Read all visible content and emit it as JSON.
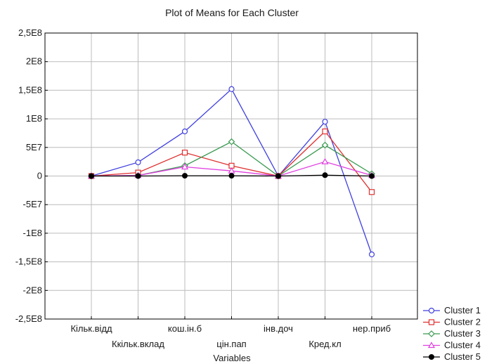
{
  "chart_data": {
    "type": "line",
    "title": "Plot of Means for Each Cluster",
    "xlabel": "Variables",
    "ylabel": "",
    "categories": [
      "Кільк.відд",
      "Ккільк.вклад",
      "кош.ін.б",
      "цін.пап",
      "інв.доч",
      "Кред.кл",
      "нер.приб"
    ],
    "ylim": [
      -250000000,
      250000000
    ],
    "yticks": [
      250000000,
      200000000,
      150000000,
      100000000,
      50000000,
      0,
      -50000000,
      -100000000,
      -150000000,
      -200000000,
      -250000000
    ],
    "ytick_labels": [
      "2,5E8",
      "2E8",
      "1,5E8",
      "1E8",
      "5E7",
      "0",
      "-5E7",
      "-1E8",
      "-1,5E8",
      "-2E8",
      "-2,5E8"
    ],
    "grid": true,
    "legend_position": "bottom-right",
    "series": [
      {
        "name": "Cluster  1",
        "color": "#4040e0",
        "marker": "circle",
        "values": [
          0,
          24000000,
          78000000,
          152000000,
          0,
          95000000,
          -137000000
        ]
      },
      {
        "name": "Cluster  2",
        "color": "#e03030",
        "marker": "square",
        "values": [
          0,
          6000000,
          41000000,
          18000000,
          0,
          78000000,
          -28000000
        ]
      },
      {
        "name": "Cluster  3",
        "color": "#3a9a50",
        "marker": "diamond",
        "values": [
          0,
          1000000,
          18000000,
          60000000,
          0,
          54000000,
          4000000
        ]
      },
      {
        "name": "Cluster  4",
        "color": "#e040e0",
        "marker": "triangle",
        "values": [
          0,
          1000000,
          16000000,
          9000000,
          0,
          25000000,
          1000000
        ]
      },
      {
        "name": "Cluster  5",
        "color": "#000000",
        "marker": "filled-circle",
        "values": [
          0,
          0,
          500000,
          500000,
          0,
          1500000,
          0
        ]
      }
    ]
  }
}
